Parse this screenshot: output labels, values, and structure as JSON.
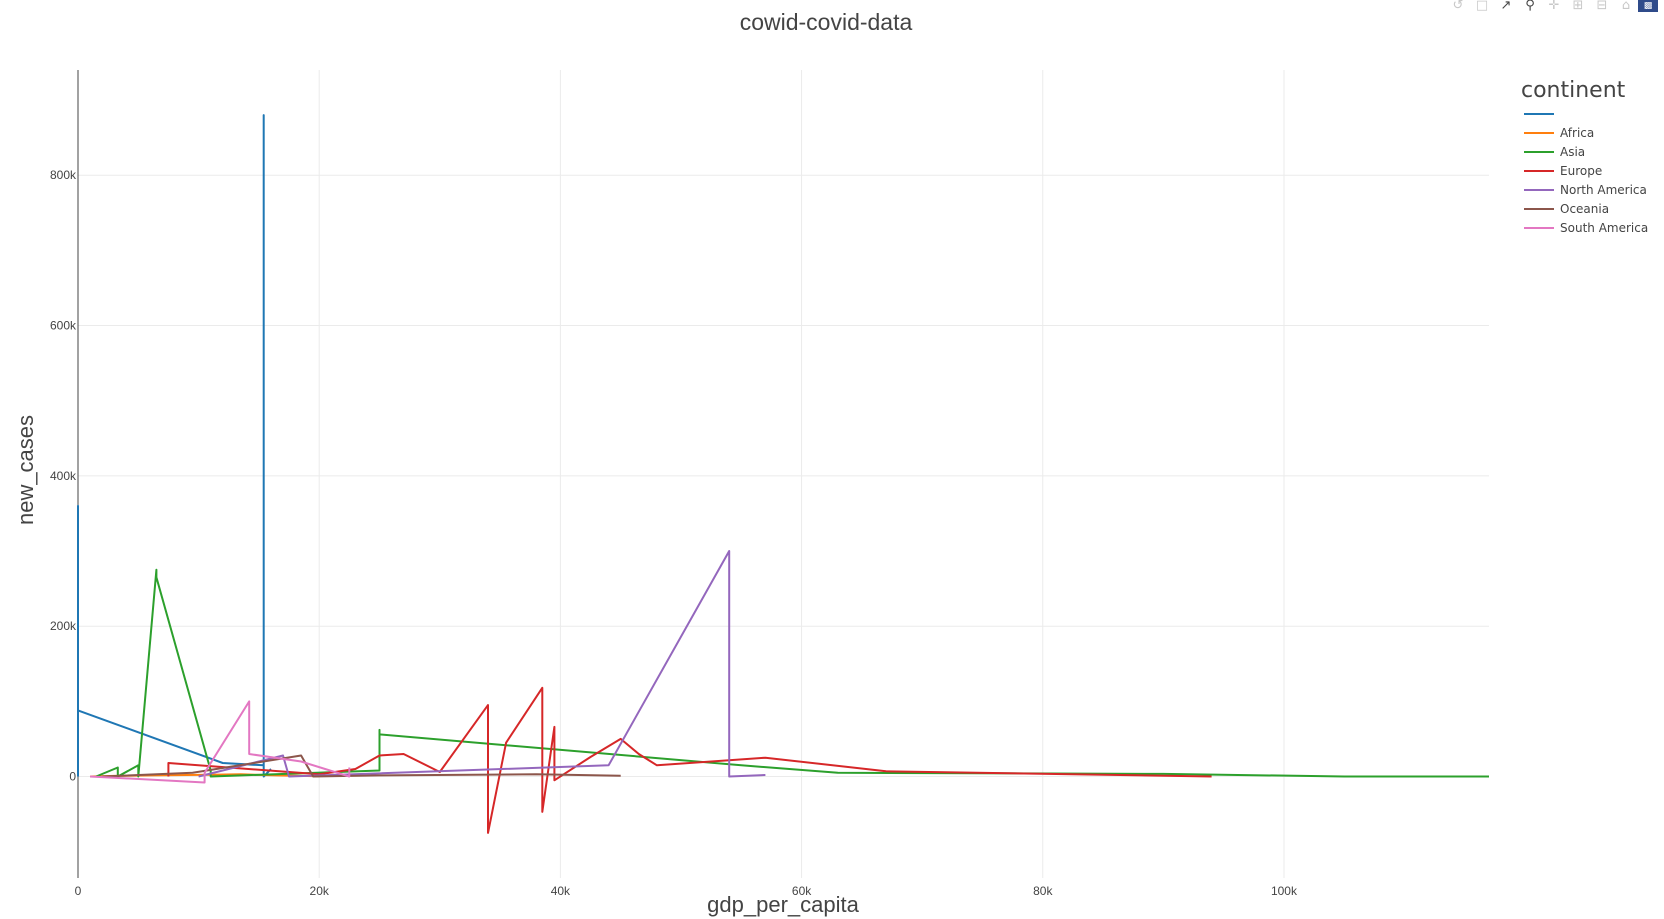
{
  "chart_data": {
    "type": "line",
    "title": "cowid-covid-data",
    "xlabel": "gdp_per_capita",
    "ylabel": "new_cases",
    "xlim": [
      0,
      117000
    ],
    "ylim": [
      -135000,
      940000
    ],
    "x_ticks": [
      0,
      20000,
      40000,
      60000,
      80000,
      100000
    ],
    "x_tick_labels": [
      "0",
      "20k",
      "40k",
      "60k",
      "80k",
      "100k"
    ],
    "y_ticks": [
      0,
      200000,
      400000,
      600000,
      800000
    ],
    "y_tick_labels": [
      "0",
      "200k",
      "400k",
      "600k",
      "800k"
    ],
    "grid": true,
    "legend_title": "continent",
    "legend_placement": "top-right",
    "series": [
      {
        "name": "",
        "color": "#1f77b4",
        "points": [
          [
            0,
            0
          ],
          [
            0,
            360000
          ],
          [
            0,
            88000
          ],
          [
            12000,
            18000
          ],
          [
            15400,
            15000
          ],
          [
            15400,
            880000
          ],
          [
            15400,
            0
          ],
          [
            16000,
            10000
          ]
        ]
      },
      {
        "name": "Africa",
        "color": "#ff7f0e",
        "points": [
          [
            1000,
            0
          ],
          [
            3000,
            800
          ],
          [
            6000,
            1500
          ],
          [
            11000,
            2500
          ],
          [
            13500,
            3000
          ],
          [
            16500,
            1500
          ],
          [
            20000,
            500
          ]
        ]
      },
      {
        "name": "Asia",
        "color": "#2ca02c",
        "points": [
          [
            1500,
            0
          ],
          [
            3300,
            12000
          ],
          [
            3300,
            0
          ],
          [
            5000,
            15000
          ],
          [
            5000,
            0
          ],
          [
            6500,
            275000
          ],
          [
            6500,
            265000
          ],
          [
            11000,
            8000
          ],
          [
            11000,
            0
          ],
          [
            25000,
            8000
          ],
          [
            25000,
            62000
          ],
          [
            25000,
            56000
          ],
          [
            55000,
            15000
          ],
          [
            63000,
            5000
          ],
          [
            90000,
            3500
          ],
          [
            105000,
            0
          ],
          [
            117000,
            0
          ]
        ]
      },
      {
        "name": "Europe",
        "color": "#d62728",
        "points": [
          [
            7500,
            0
          ],
          [
            7500,
            18000
          ],
          [
            20000,
            3000
          ],
          [
            23000,
            10000
          ],
          [
            25000,
            28000
          ],
          [
            27000,
            30000
          ],
          [
            30000,
            6000
          ],
          [
            34000,
            95000
          ],
          [
            34000,
            -75000
          ],
          [
            35500,
            45000
          ],
          [
            38500,
            118000
          ],
          [
            38500,
            -47000
          ],
          [
            39500,
            66000
          ],
          [
            39500,
            -5000
          ],
          [
            42500,
            26000
          ],
          [
            45000,
            50000
          ],
          [
            46500,
            30000
          ],
          [
            48000,
            15000
          ],
          [
            57000,
            25000
          ],
          [
            67000,
            7000
          ],
          [
            94000,
            0
          ]
        ]
      },
      {
        "name": "North America",
        "color": "#9467bd",
        "points": [
          [
            10000,
            0
          ],
          [
            17000,
            28000
          ],
          [
            17500,
            0
          ],
          [
            44000,
            15000
          ],
          [
            54000,
            300000
          ],
          [
            54000,
            0
          ],
          [
            57000,
            2000
          ]
        ]
      },
      {
        "name": "Oceania",
        "color": "#8c564b",
        "points": [
          [
            2000,
            0
          ],
          [
            9500,
            5000
          ],
          [
            18500,
            28000
          ],
          [
            19500,
            0
          ],
          [
            25000,
            1500
          ],
          [
            38000,
            3000
          ],
          [
            45000,
            1000
          ]
        ]
      },
      {
        "name": "South America",
        "color": "#e377c2",
        "points": [
          [
            1000,
            0
          ],
          [
            10500,
            -8000
          ],
          [
            10500,
            5000
          ],
          [
            14200,
            100000
          ],
          [
            14200,
            30000
          ],
          [
            18500,
            20000
          ],
          [
            22500,
            0
          ],
          [
            22500,
            12000
          ]
        ]
      }
    ]
  },
  "modebar": {
    "icons": [
      "undo-icon",
      "box-select-icon",
      "spike-lines-icon",
      "zoom-icon",
      "pan-icon",
      "zoom-in-icon",
      "zoom-out-icon",
      "home-icon",
      "plotly-logo-icon"
    ]
  }
}
